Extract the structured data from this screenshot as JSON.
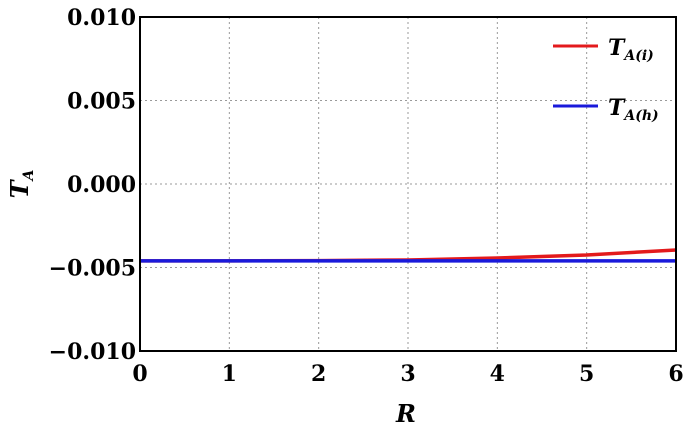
{
  "chart_data": {
    "type": "line",
    "xlabel": "R",
    "ylabel": {
      "main": "T",
      "sub": "A"
    },
    "xlim": [
      0,
      6
    ],
    "ylim": [
      -0.01,
      0.01
    ],
    "x_ticks": [
      "0",
      "1",
      "2",
      "3",
      "4",
      "5",
      "6"
    ],
    "y_ticks": [
      "0.010",
      "0.005",
      "0.000",
      "−0.005",
      "−0.010"
    ],
    "y_tick_values": [
      0.01,
      0.005,
      0.0,
      -0.005,
      -0.01
    ],
    "grid": true,
    "legend_position": "top-right",
    "series": [
      {
        "name": {
          "main": "T",
          "sub": "A(i)"
        },
        "color": "#e31a1c",
        "x": [
          0,
          1,
          2,
          3,
          4,
          5,
          6
        ],
        "y": [
          -0.0046,
          -0.0046,
          -0.00459,
          -0.00455,
          -0.00443,
          -0.00425,
          -0.00395
        ]
      },
      {
        "name": {
          "main": "T",
          "sub": "A(h)"
        },
        "color": "#1a1adb",
        "x": [
          0,
          1,
          2,
          3,
          4,
          5,
          6
        ],
        "y": [
          -0.0046,
          -0.0046,
          -0.0046,
          -0.0046,
          -0.0046,
          -0.0046,
          -0.0046
        ]
      }
    ]
  }
}
